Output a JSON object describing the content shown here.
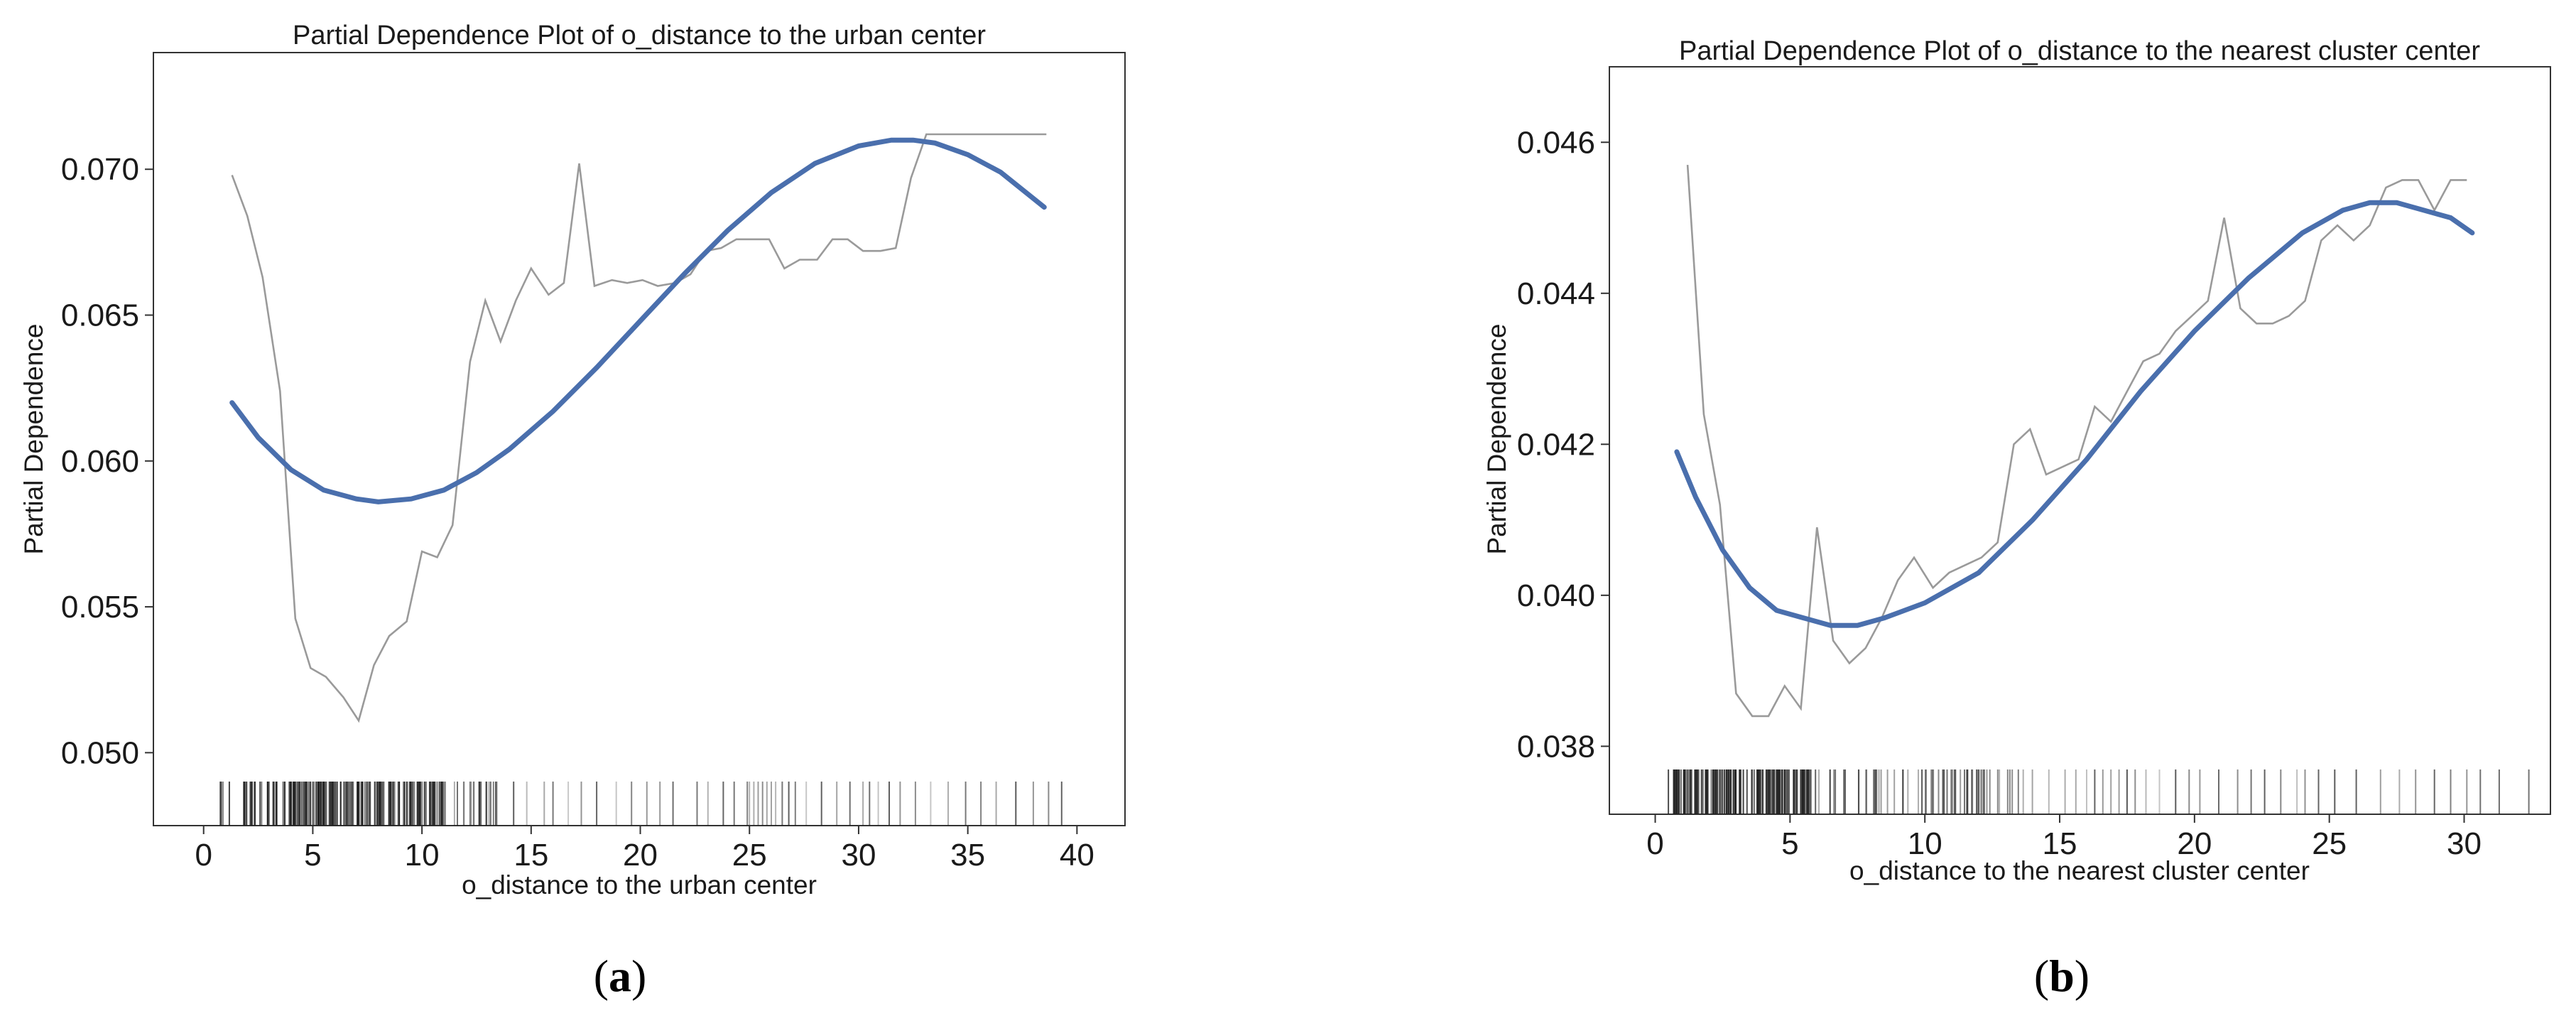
{
  "colors": {
    "pdp_line": "#9a9a9a",
    "fit_line": "#4a6fad",
    "rug": "#222222",
    "axis": "#333333"
  },
  "chart_data": [
    {
      "type": "line",
      "panel_label": "a",
      "title": "Partial Dependence Plot of o_distance to the urban center",
      "xlabel": "o_distance to the urban center",
      "ylabel": "Partial Dependence",
      "xlim": [
        -2.3,
        42.2
      ],
      "ylim": [
        0.0475,
        0.074
      ],
      "xticks": [
        0,
        5,
        10,
        15,
        20,
        25,
        30,
        35,
        40
      ],
      "yticks": [
        0.05,
        0.055,
        0.06,
        0.065,
        0.07
      ],
      "ytick_labels": [
        "0.050",
        "0.055",
        "0.060",
        "0.065",
        "0.070"
      ],
      "grid": false,
      "series": [
        {
          "style": "thin-gray",
          "x": [
            1.3,
            2.0,
            2.7,
            3.5,
            4.2,
            4.9,
            5.6,
            6.4,
            7.1,
            7.8,
            8.5,
            9.3,
            10.0,
            10.7,
            11.4,
            12.2,
            12.9,
            13.6,
            14.3,
            15.0,
            15.8,
            16.5,
            17.2,
            17.9,
            18.7,
            19.4,
            20.1,
            20.8,
            21.6,
            22.3,
            23.0,
            23.7,
            24.4,
            25.2,
            25.9,
            26.6,
            27.3,
            28.1,
            28.8,
            29.5,
            30.2,
            31.0,
            31.7,
            32.4,
            33.1,
            33.8,
            34.6,
            35.3,
            36.0,
            36.7,
            37.5,
            38.2,
            38.6
          ],
          "y": [
            0.0698,
            0.0684,
            0.0663,
            0.0624,
            0.0546,
            0.0529,
            0.0526,
            0.0519,
            0.0511,
            0.053,
            0.054,
            0.0545,
            0.0569,
            0.0567,
            0.0578,
            0.0634,
            0.0655,
            0.0641,
            0.0655,
            0.0666,
            0.0657,
            0.0661,
            0.0702,
            0.066,
            0.0662,
            0.0661,
            0.0662,
            0.066,
            0.0661,
            0.0664,
            0.0672,
            0.0673,
            0.0676,
            0.0676,
            0.0676,
            0.0666,
            0.0669,
            0.0669,
            0.0676,
            0.0676,
            0.0672,
            0.0672,
            0.0673,
            0.0697,
            0.0712,
            0.0712,
            0.0712,
            0.0712,
            0.0712,
            0.0712,
            0.0712,
            0.0712,
            0.0712
          ]
        },
        {
          "style": "smooth-blue",
          "x": [
            1.3,
            2.5,
            4.0,
            5.5,
            7.0,
            8.0,
            9.5,
            11.0,
            12.5,
            14.0,
            16.0,
            18.0,
            20.0,
            22.0,
            24.0,
            26.0,
            28.0,
            30.0,
            31.5,
            32.5,
            33.5,
            35.0,
            36.5,
            38.5
          ],
          "y": [
            0.062,
            0.0608,
            0.0597,
            0.059,
            0.0587,
            0.0586,
            0.0587,
            0.059,
            0.0596,
            0.0604,
            0.0617,
            0.0632,
            0.0648,
            0.0664,
            0.0679,
            0.0692,
            0.0702,
            0.0708,
            0.071,
            0.071,
            0.0709,
            0.0705,
            0.0699,
            0.0687
          ]
        }
      ],
      "rug": {
        "range": [
          0.3,
          39.6
        ],
        "dense_range": [
          0.5,
          11.0
        ],
        "dense_count": 170,
        "medium_range": [
          11.0,
          13.5
        ],
        "medium_count": 22,
        "sparse_x": [
          14.2,
          14.8,
          15.6,
          16.0,
          16.7,
          17.3,
          18.0,
          18.9,
          19.6,
          20.3,
          20.9,
          21.5,
          22.6,
          23.1,
          23.8,
          24.3,
          24.9,
          25.0,
          25.2,
          25.4,
          25.6,
          25.8,
          26.0,
          26.2,
          26.5,
          26.8,
          27.1,
          27.6,
          28.3,
          29.0,
          29.6,
          30.2,
          30.5,
          30.9,
          31.4,
          31.9,
          32.6,
          33.3,
          34.1,
          34.9,
          35.6,
          36.3,
          37.2,
          38.0,
          38.7,
          39.3
        ]
      }
    },
    {
      "type": "line",
      "panel_label": "b",
      "title": "Partial Dependence Plot of o_distance to the nearest cluster center",
      "xlabel": "o_distance to the nearest cluster center",
      "ylabel": "Partial Dependence",
      "xlim": [
        -1.7,
        33.2
      ],
      "ylim": [
        0.0371,
        0.047
      ],
      "xticks": [
        0,
        5,
        10,
        15,
        20,
        25,
        30
      ],
      "yticks": [
        0.038,
        0.04,
        0.042,
        0.044,
        0.046
      ],
      "ytick_labels": [
        "0.038",
        "0.040",
        "0.042",
        "0.044",
        "0.046"
      ],
      "grid": false,
      "series": [
        {
          "style": "thin-gray",
          "x": [
            1.2,
            1.8,
            2.4,
            3.0,
            3.6,
            4.2,
            4.8,
            5.4,
            6.0,
            6.6,
            7.2,
            7.8,
            8.4,
            9.0,
            9.6,
            10.3,
            10.9,
            11.5,
            12.1,
            12.7,
            13.3,
            13.9,
            14.5,
            15.1,
            15.7,
            16.3,
            16.9,
            17.5,
            18.1,
            18.7,
            19.3,
            19.9,
            20.5,
            21.1,
            21.7,
            22.3,
            22.9,
            23.5,
            24.1,
            24.7,
            25.3,
            25.9,
            26.5,
            27.1,
            27.7,
            28.3,
            28.9,
            29.5,
            30.1
          ],
          "y": [
            0.0457,
            0.0424,
            0.0412,
            0.0387,
            0.0384,
            0.0384,
            0.0388,
            0.0385,
            0.0409,
            0.0394,
            0.0391,
            0.0393,
            0.0397,
            0.0402,
            0.0405,
            0.0401,
            0.0403,
            0.0404,
            0.0405,
            0.0407,
            0.042,
            0.0422,
            0.0416,
            0.0417,
            0.0418,
            0.0425,
            0.0423,
            0.0427,
            0.0431,
            0.0432,
            0.0435,
            0.0437,
            0.0439,
            0.045,
            0.0438,
            0.0436,
            0.0436,
            0.0437,
            0.0439,
            0.0447,
            0.0449,
            0.0447,
            0.0449,
            0.0454,
            0.0455,
            0.0455,
            0.0451,
            0.0455,
            0.0455
          ]
        },
        {
          "style": "smooth-blue",
          "x": [
            0.8,
            1.5,
            2.5,
            3.5,
            4.5,
            5.5,
            6.5,
            7.5,
            8.5,
            10.0,
            12.0,
            14.0,
            16.0,
            18.0,
            20.0,
            22.0,
            24.0,
            25.5,
            26.5,
            27.5,
            28.5,
            29.5,
            30.3
          ],
          "y": [
            0.0419,
            0.0413,
            0.0406,
            0.0401,
            0.0398,
            0.0397,
            0.0396,
            0.0396,
            0.0397,
            0.0399,
            0.0403,
            0.041,
            0.0418,
            0.0427,
            0.0435,
            0.0442,
            0.0448,
            0.0451,
            0.0452,
            0.0452,
            0.0451,
            0.045,
            0.0448
          ]
        }
      ],
      "rug": {
        "range": [
          0.2,
          32.6
        ],
        "dense_range": [
          0.2,
          6.0
        ],
        "dense_count": 150,
        "medium_range": [
          6.0,
          14.0
        ],
        "medium_count": 60,
        "sparse_x": [
          14.6,
          15.2,
          15.6,
          16.0,
          16.3,
          16.6,
          16.9,
          17.2,
          17.5,
          17.8,
          18.2,
          18.7,
          19.3,
          19.8,
          20.2,
          20.9,
          21.6,
          22.1,
          22.6,
          23.2,
          23.8,
          24.1,
          24.6,
          25.2,
          26.0,
          26.9,
          27.6,
          28.2,
          28.9,
          29.5,
          30.1,
          30.6,
          31.3,
          32.4
        ]
      }
    }
  ]
}
